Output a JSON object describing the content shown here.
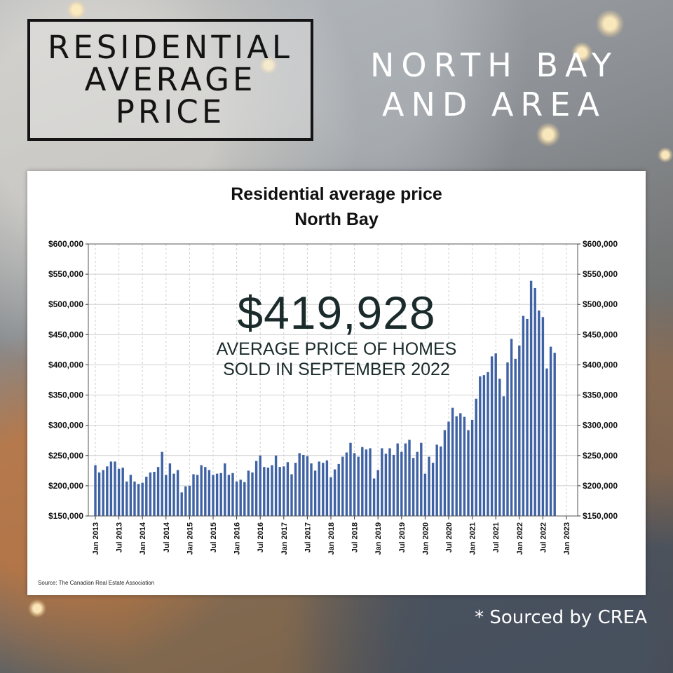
{
  "header": {
    "box_title_lines": [
      "RESIDENTIAL",
      "AVERAGE",
      "PRICE"
    ],
    "area_lines": [
      "NORTH BAY",
      "AND AREA"
    ]
  },
  "overlay": {
    "price": "$419,928",
    "subtitle_line1": "AVERAGE PRICE OF HOMES",
    "subtitle_line2": "SOLD IN SEPTEMBER 2022"
  },
  "footer": {
    "crea_note": "* Sourced by CREA"
  },
  "colors": {
    "bar": "#3f62a4",
    "grid": "#cfcfcf",
    "text": "#111111"
  },
  "chart_data": {
    "type": "bar",
    "title": "Residential average price",
    "subtitle": "North Bay",
    "source": "Source: The Canadian Real Estate Association",
    "xlabel": "",
    "ylabel": "",
    "ylim": [
      150000,
      600000
    ],
    "y_ticks": [
      150000,
      200000,
      250000,
      300000,
      350000,
      400000,
      450000,
      500000,
      550000,
      600000
    ],
    "y_tick_labels": [
      "$150,000",
      "$200,000",
      "$250,000",
      "$300,000",
      "$350,000",
      "$400,000",
      "$450,000",
      "$500,000",
      "$550,000",
      "$600,000"
    ],
    "x_tick_labels": [
      "Jan 2013",
      "Jul 2013",
      "Jan 2014",
      "Jul 2014",
      "Jan 2015",
      "Jul 2015",
      "Jan 2016",
      "Jul 2016",
      "Jan 2017",
      "Jul 2017",
      "Jan 2018",
      "Jul 2018",
      "Jan 2019",
      "Jul 2019",
      "Jan 2020",
      "Jul 2020",
      "Jan 2021",
      "Jul 2021",
      "Jan 2022",
      "Jul 2022",
      "Jan 2023"
    ],
    "grid": true,
    "start": "2013-01",
    "frequency": "monthly",
    "values": [
      234000,
      222000,
      226000,
      232000,
      240000,
      240000,
      228000,
      230000,
      207000,
      218000,
      207000,
      203000,
      205000,
      215000,
      222000,
      223000,
      231000,
      256000,
      218000,
      237000,
      220000,
      226000,
      189000,
      199000,
      200000,
      219000,
      218000,
      234000,
      231000,
      226000,
      218000,
      220000,
      221000,
      237000,
      218000,
      221000,
      207000,
      210000,
      206000,
      225000,
      222000,
      241000,
      250000,
      231000,
      230000,
      234000,
      250000,
      231000,
      232000,
      239000,
      219000,
      238000,
      254000,
      251000,
      249000,
      237000,
      225000,
      240000,
      238000,
      242000,
      214000,
      227000,
      236000,
      248000,
      255000,
      271000,
      254000,
      248000,
      264000,
      260000,
      262000,
      212000,
      226000,
      262000,
      253000,
      262000,
      251000,
      270000,
      256000,
      270000,
      276000,
      246000,
      256000,
      271000,
      220000,
      248000,
      238000,
      268000,
      265000,
      292000,
      306000,
      329000,
      315000,
      320000,
      314000,
      292000,
      309000,
      344000,
      381000,
      383000,
      388000,
      414000,
      419000,
      377000,
      348000,
      404000,
      443000,
      410000,
      432000,
      481000,
      476000,
      539000,
      527000,
      490000,
      479000,
      394000,
      430000,
      419928
    ]
  }
}
